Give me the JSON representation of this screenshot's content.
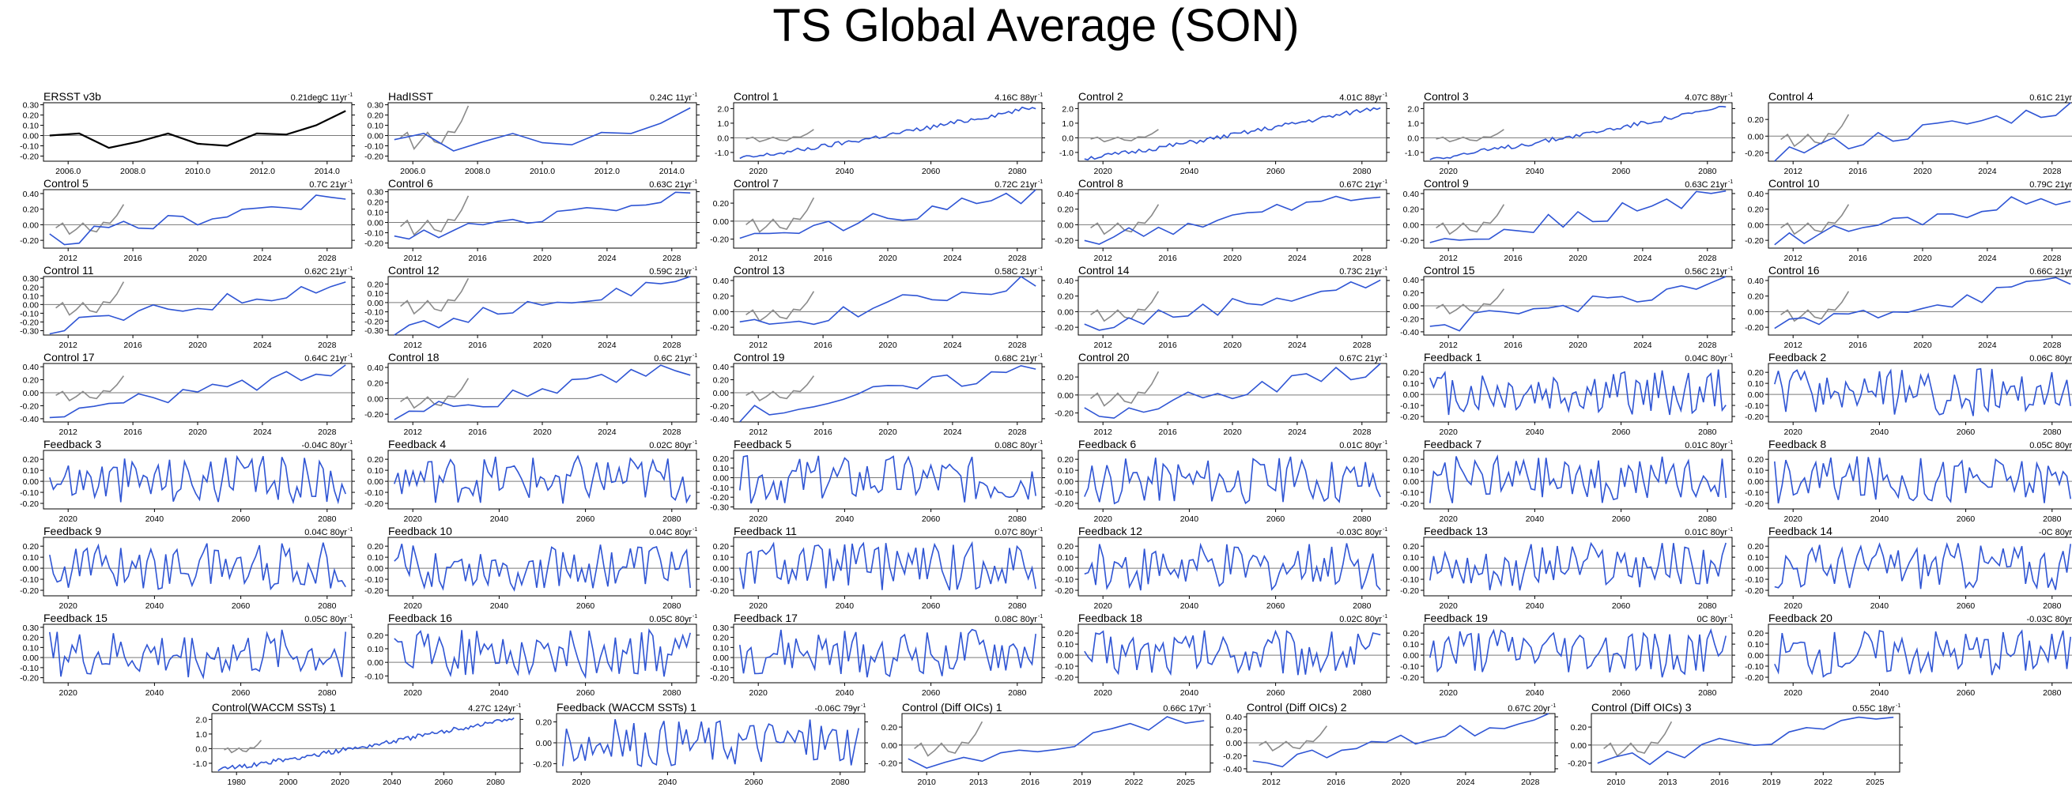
{
  "title": "TS Global Average (SON)",
  "colors": {
    "obs": "#000000",
    "model": "#2f55d4",
    "obs_overlay": "#8a8a8a",
    "zero_line": "#7a7a7a"
  },
  "chart_data": [
    {
      "type": "line",
      "label": "ERSST v3b",
      "trend": "0.21degC 11yr",
      "x": [
        2005,
        2006,
        2007,
        2008,
        2009,
        2010,
        2011,
        2012,
        2013,
        2014,
        2015
      ],
      "ticks": [
        "2006.0",
        "2008.0",
        "2010.0",
        "2012.0",
        "2014.0"
      ],
      "yticks": [
        "0.30",
        "0.20",
        "0.10",
        "0.00",
        "-0.10",
        "-0.20"
      ],
      "ylim": [
        -0.25,
        0.32
      ],
      "values": [
        0.0,
        0.02,
        -0.12,
        -0.06,
        0.02,
        -0.08,
        -0.1,
        0.02,
        0.01,
        0.1,
        0.24
      ],
      "obs": true
    },
    {
      "type": "line",
      "label": "HadISST",
      "trend": "0.24C 11yr",
      "x": [
        2005,
        2006,
        2007,
        2008,
        2009,
        2010,
        2011,
        2012,
        2013,
        2014,
        2015
      ],
      "ticks": [
        "2006.0",
        "2008.0",
        "2010.0",
        "2012.0",
        "2014.0"
      ],
      "yticks": [
        "0.30",
        "0.20",
        "0.10",
        "0.00",
        "-0.10",
        "-0.20"
      ],
      "ylim": [
        -0.25,
        0.32
      ],
      "values": [
        -0.04,
        0.02,
        -0.15,
        -0.06,
        0.02,
        -0.07,
        -0.09,
        0.03,
        0.02,
        0.12,
        0.27
      ],
      "overlay": [
        -0.02,
        0.03,
        -0.13,
        -0.05,
        0.03,
        -0.06,
        -0.08,
        0.04,
        0.03,
        0.14,
        0.29
      ]
    },
    {
      "type": "line",
      "label": "Control 1",
      "trend": "4.16C 88yr",
      "ticks": [
        "2020",
        "2040",
        "2060",
        "2080"
      ],
      "yticks": [
        "2.0",
        "1.0",
        "0.0",
        "-1.0"
      ],
      "ylim": [
        -1.6,
        2.4
      ],
      "gen": "warm88"
    },
    {
      "type": "line",
      "label": "Control 2",
      "trend": "4.01C 88yr",
      "ticks": [
        "2020",
        "2040",
        "2060",
        "2080"
      ],
      "yticks": [
        "2.0",
        "1.0",
        "0.0",
        "-1.0"
      ],
      "ylim": [
        -1.6,
        2.4
      ],
      "gen": "warm88"
    },
    {
      "type": "line",
      "label": "Control 3",
      "trend": "4.07C 88yr",
      "ticks": [
        "2020",
        "2040",
        "2060",
        "2080"
      ],
      "yticks": [
        "2.0",
        "1.0",
        "0.0",
        "-1.0"
      ],
      "ylim": [
        -1.6,
        2.4
      ],
      "gen": "warm88"
    },
    {
      "type": "line",
      "label": "Control 4",
      "trend": "0.61C 21yr",
      "ticks": [
        "2012",
        "2016",
        "2020",
        "2024",
        "2028"
      ],
      "yticks": [
        "0.20",
        "0.00",
        "-0.20"
      ],
      "ylim": [
        -0.3,
        0.4
      ],
      "gen": "c21"
    },
    {
      "type": "line",
      "label": "Control 5",
      "trend": "0.7C 21yr",
      "ticks": [
        "2012",
        "2016",
        "2020",
        "2024",
        "2028"
      ],
      "yticks": [
        "0.40",
        "0.20",
        "0.00",
        "-0.20"
      ],
      "ylim": [
        -0.3,
        0.45
      ],
      "gen": "c21"
    },
    {
      "type": "line",
      "label": "Control 6",
      "trend": "0.63C 21yr",
      "ticks": [
        "2012",
        "2016",
        "2020",
        "2024",
        "2028"
      ],
      "yticks": [
        "0.30",
        "0.20",
        "0.10",
        "0.00",
        "-0.10",
        "-0.20"
      ],
      "ylim": [
        -0.25,
        0.32
      ],
      "gen": "c21"
    },
    {
      "type": "line",
      "label": "Control 7",
      "trend": "0.72C 21yr",
      "ticks": [
        "2012",
        "2016",
        "2020",
        "2024",
        "2028"
      ],
      "yticks": [
        "0.20",
        "0.00",
        "-0.20"
      ],
      "ylim": [
        -0.3,
        0.35
      ],
      "gen": "c21"
    },
    {
      "type": "line",
      "label": "Control 8",
      "trend": "0.67C 21yr",
      "ticks": [
        "2012",
        "2016",
        "2020",
        "2024",
        "2028"
      ],
      "yticks": [
        "0.40",
        "0.20",
        "0.00",
        "-0.20"
      ],
      "ylim": [
        -0.3,
        0.45
      ],
      "gen": "c21"
    },
    {
      "type": "line",
      "label": "Control 9",
      "trend": "0.63C 21yr",
      "ticks": [
        "2012",
        "2016",
        "2020",
        "2024",
        "2028"
      ],
      "yticks": [
        "0.40",
        "0.20",
        "0.00",
        "-0.20"
      ],
      "ylim": [
        -0.3,
        0.45
      ],
      "gen": "c21"
    },
    {
      "type": "line",
      "label": "Control 10",
      "trend": "0.79C 21yr",
      "ticks": [
        "2012",
        "2016",
        "2020",
        "2024",
        "2028"
      ],
      "yticks": [
        "0.40",
        "0.20",
        "0.00",
        "-0.20"
      ],
      "ylim": [
        -0.3,
        0.45
      ],
      "gen": "c21"
    },
    {
      "type": "line",
      "label": "Control 11",
      "trend": "0.62C 21yr",
      "ticks": [
        "2012",
        "2016",
        "2020",
        "2024",
        "2028"
      ],
      "yticks": [
        "0.30",
        "0.20",
        "0.10",
        "0.00",
        "-0.10",
        "-0.20",
        "-0.30"
      ],
      "ylim": [
        -0.35,
        0.32
      ],
      "gen": "c21"
    },
    {
      "type": "line",
      "label": "Control 12",
      "trend": "0.59C 21yr",
      "ticks": [
        "2012",
        "2016",
        "2020",
        "2024",
        "2028"
      ],
      "yticks": [
        "0.20",
        "0.10",
        "0.00",
        "-0.10",
        "-0.20",
        "-0.30"
      ],
      "ylim": [
        -0.35,
        0.28
      ],
      "gen": "c21"
    },
    {
      "type": "line",
      "label": "Control 13",
      "trend": "0.58C 21yr",
      "ticks": [
        "2012",
        "2016",
        "2020",
        "2024",
        "2028"
      ],
      "yticks": [
        "0.40",
        "0.20",
        "0.00",
        "-0.20"
      ],
      "ylim": [
        -0.3,
        0.45
      ],
      "gen": "c21"
    },
    {
      "type": "line",
      "label": "Control 14",
      "trend": "0.73C 21yr",
      "ticks": [
        "2012",
        "2016",
        "2020",
        "2024",
        "2028"
      ],
      "yticks": [
        "0.40",
        "0.20",
        "0.00",
        "-0.20"
      ],
      "ylim": [
        -0.3,
        0.45
      ],
      "gen": "c21"
    },
    {
      "type": "line",
      "label": "Control 15",
      "trend": "0.56C 21yr",
      "ticks": [
        "2012",
        "2016",
        "2020",
        "2024",
        "2028"
      ],
      "yticks": [
        "0.40",
        "0.20",
        "0.00",
        "-0.20",
        "-0.40"
      ],
      "ylim": [
        -0.45,
        0.45
      ],
      "gen": "c21"
    },
    {
      "type": "line",
      "label": "Control 16",
      "trend": "0.66C 21yr",
      "ticks": [
        "2012",
        "2016",
        "2020",
        "2024",
        "2028"
      ],
      "yticks": [
        "0.40",
        "0.20",
        "0.00",
        "-0.20"
      ],
      "ylim": [
        -0.3,
        0.45
      ],
      "gen": "c21"
    },
    {
      "type": "line",
      "label": "Control 17",
      "trend": "0.64C 21yr",
      "ticks": [
        "2012",
        "2016",
        "2020",
        "2024",
        "2028"
      ],
      "yticks": [
        "0.40",
        "0.20",
        "0.00",
        "-0.20",
        "-0.40"
      ],
      "ylim": [
        -0.45,
        0.45
      ],
      "gen": "c21"
    },
    {
      "type": "line",
      "label": "Control 18",
      "trend": "0.6C 21yr",
      "ticks": [
        "2012",
        "2016",
        "2020",
        "2024",
        "2028"
      ],
      "yticks": [
        "0.40",
        "0.20",
        "0.00",
        "-0.20"
      ],
      "ylim": [
        -0.3,
        0.45
      ],
      "gen": "c21"
    },
    {
      "type": "line",
      "label": "Control 19",
      "trend": "0.68C 21yr",
      "ticks": [
        "2012",
        "2016",
        "2020",
        "2024",
        "2028"
      ],
      "yticks": [
        "0.40",
        "0.20",
        "0.00",
        "-0.20",
        "-0.40"
      ],
      "ylim": [
        -0.45,
        0.45
      ],
      "gen": "c21"
    },
    {
      "type": "line",
      "label": "Control 20",
      "trend": "0.67C 21yr",
      "ticks": [
        "2012",
        "2016",
        "2020",
        "2024",
        "2028"
      ],
      "yticks": [
        "0.20",
        "0.00",
        "-0.20"
      ],
      "ylim": [
        -0.3,
        0.35
      ],
      "gen": "c21"
    },
    {
      "type": "line",
      "label": "Feedback 1",
      "trend": "0.04C 80yr",
      "ticks": [
        "2020",
        "2040",
        "2060",
        "2080"
      ],
      "yticks": [
        "0.20",
        "0.10",
        "0.00",
        "-0.10",
        "-0.20"
      ],
      "ylim": [
        -0.25,
        0.28
      ],
      "gen": "f80"
    },
    {
      "type": "line",
      "label": "Feedback 2",
      "trend": "0.06C 80yr",
      "ticks": [
        "2020",
        "2040",
        "2060",
        "2080"
      ],
      "yticks": [
        "0.20",
        "0.10",
        "0.00",
        "-0.10",
        "-0.20"
      ],
      "ylim": [
        -0.25,
        0.28
      ],
      "gen": "f80"
    },
    {
      "type": "line",
      "label": "Feedback 3",
      "trend": "-0.04C 80yr",
      "ticks": [
        "2020",
        "2040",
        "2060",
        "2080"
      ],
      "yticks": [
        "0.20",
        "0.10",
        "0.00",
        "-0.10",
        "-0.20"
      ],
      "ylim": [
        -0.25,
        0.28
      ],
      "gen": "f80"
    },
    {
      "type": "line",
      "label": "Feedback 4",
      "trend": "0.02C 80yr",
      "ticks": [
        "2020",
        "2040",
        "2060",
        "2080"
      ],
      "yticks": [
        "0.20",
        "0.10",
        "0.00",
        "-0.10",
        "-0.20"
      ],
      "ylim": [
        -0.25,
        0.28
      ],
      "gen": "f80"
    },
    {
      "type": "line",
      "label": "Feedback 5",
      "trend": "0.08C 80yr",
      "ticks": [
        "2020",
        "2040",
        "2060",
        "2080"
      ],
      "yticks": [
        "0.20",
        "0.10",
        "0.00",
        "-0.10",
        "-0.20",
        "-0.30"
      ],
      "ylim": [
        -0.32,
        0.28
      ],
      "gen": "f80"
    },
    {
      "type": "line",
      "label": "Feedback 6",
      "trend": "0.01C 80yr",
      "ticks": [
        "2020",
        "2040",
        "2060",
        "2080"
      ],
      "yticks": [
        "0.20",
        "0.10",
        "0.00",
        "-0.10",
        "-0.20"
      ],
      "ylim": [
        -0.25,
        0.28
      ],
      "gen": "f80"
    },
    {
      "type": "line",
      "label": "Feedback 7",
      "trend": "0.01C 80yr",
      "ticks": [
        "2020",
        "2040",
        "2060",
        "2080"
      ],
      "yticks": [
        "0.20",
        "0.10",
        "0.00",
        "-0.10",
        "-0.20"
      ],
      "ylim": [
        -0.25,
        0.28
      ],
      "gen": "f80"
    },
    {
      "type": "line",
      "label": "Feedback 8",
      "trend": "0.05C 80yr",
      "ticks": [
        "2020",
        "2040",
        "2060",
        "2080"
      ],
      "yticks": [
        "0.20",
        "0.10",
        "0.00",
        "-0.10",
        "-0.20"
      ],
      "ylim": [
        -0.25,
        0.28
      ],
      "gen": "f80"
    },
    {
      "type": "line",
      "label": "Feedback 9",
      "trend": "0.04C 80yr",
      "ticks": [
        "2020",
        "2040",
        "2060",
        "2080"
      ],
      "yticks": [
        "0.20",
        "0.10",
        "0.00",
        "-0.10",
        "-0.20"
      ],
      "ylim": [
        -0.25,
        0.28
      ],
      "gen": "f80"
    },
    {
      "type": "line",
      "label": "Feedback 10",
      "trend": "0.04C 80yr",
      "ticks": [
        "2020",
        "2040",
        "2060",
        "2080"
      ],
      "yticks": [
        "0.20",
        "0.10",
        "0.00",
        "-0.10",
        "-0.20"
      ],
      "ylim": [
        -0.25,
        0.28
      ],
      "gen": "f80"
    },
    {
      "type": "line",
      "label": "Feedback 11",
      "trend": "0.07C 80yr",
      "ticks": [
        "2020",
        "2040",
        "2060",
        "2080"
      ],
      "yticks": [
        "0.20",
        "0.10",
        "0.00",
        "-0.10",
        "-0.20"
      ],
      "ylim": [
        -0.25,
        0.28
      ],
      "gen": "f80"
    },
    {
      "type": "line",
      "label": "Feedback 12",
      "trend": "-0.03C 80yr",
      "ticks": [
        "2020",
        "2040",
        "2060",
        "2080"
      ],
      "yticks": [
        "0.20",
        "0.10",
        "0.00",
        "-0.10",
        "-0.20"
      ],
      "ylim": [
        -0.25,
        0.28
      ],
      "gen": "f80"
    },
    {
      "type": "line",
      "label": "Feedback 13",
      "trend": "0.01C 80yr",
      "ticks": [
        "2020",
        "2040",
        "2060",
        "2080"
      ],
      "yticks": [
        "0.20",
        "0.10",
        "0.00",
        "-0.10",
        "-0.20"
      ],
      "ylim": [
        -0.25,
        0.28
      ],
      "gen": "f80"
    },
    {
      "type": "line",
      "label": "Feedback 14",
      "trend": "-0C 80yr",
      "ticks": [
        "2020",
        "2040",
        "2060",
        "2080"
      ],
      "yticks": [
        "0.20",
        "0.10",
        "0.00",
        "-0.10",
        "-0.20"
      ],
      "ylim": [
        -0.25,
        0.28
      ],
      "gen": "f80"
    },
    {
      "type": "line",
      "label": "Feedback 15",
      "trend": "0.05C 80yr",
      "ticks": [
        "2020",
        "2040",
        "2060",
        "2080"
      ],
      "yticks": [
        "0.30",
        "0.20",
        "0.10",
        "0.00",
        "-0.10",
        "-0.20"
      ],
      "ylim": [
        -0.25,
        0.33
      ],
      "gen": "f80"
    },
    {
      "type": "line",
      "label": "Feedback 16",
      "trend": "0.05C 80yr",
      "ticks": [
        "2020",
        "2040",
        "2060",
        "2080"
      ],
      "yticks": [
        "0.20",
        "0.10",
        "0.00",
        "-0.10"
      ],
      "ylim": [
        -0.15,
        0.28
      ],
      "gen": "f80"
    },
    {
      "type": "line",
      "label": "Feedback 17",
      "trend": "0.08C 80yr",
      "ticks": [
        "2020",
        "2040",
        "2060",
        "2080"
      ],
      "yticks": [
        "0.30",
        "0.20",
        "0.10",
        "0.00",
        "-0.10",
        "-0.20"
      ],
      "ylim": [
        -0.25,
        0.33
      ],
      "gen": "f80"
    },
    {
      "type": "line",
      "label": "Feedback 18",
      "trend": "0.02C 80yr",
      "ticks": [
        "2020",
        "2040",
        "2060",
        "2080"
      ],
      "yticks": [
        "0.20",
        "0.10",
        "0.00",
        "-0.10",
        "-0.20"
      ],
      "ylim": [
        -0.25,
        0.28
      ],
      "gen": "f80"
    },
    {
      "type": "line",
      "label": "Feedback 19",
      "trend": "0C 80yr",
      "ticks": [
        "2020",
        "2040",
        "2060",
        "2080"
      ],
      "yticks": [
        "0.20",
        "0.10",
        "0.00",
        "-0.10",
        "-0.20"
      ],
      "ylim": [
        -0.25,
        0.28
      ],
      "gen": "f80"
    },
    {
      "type": "line",
      "label": "Feedback 20",
      "trend": "-0.03C 80yr",
      "ticks": [
        "2020",
        "2040",
        "2060",
        "2080"
      ],
      "yticks": [
        "0.20",
        "0.10",
        "0.00",
        "-0.10",
        "-0.20"
      ],
      "ylim": [
        -0.25,
        0.28
      ],
      "gen": "f80"
    },
    {
      "type": "line",
      "label": "Control(WACCM SSTs) 1",
      "trend": "4.27C 124yr",
      "ticks": [
        "1980",
        "2000",
        "2020",
        "2040",
        "2060",
        "2080"
      ],
      "yticks": [
        "2.0",
        "1.0",
        "0.0",
        "-1.0"
      ],
      "ylim": [
        -1.6,
        2.4
      ],
      "gen": "warm124"
    },
    {
      "type": "line",
      "label": "Feedback (WACCM SSTs) 1",
      "trend": "-0.06C 79yr",
      "ticks": [
        "2020",
        "2040",
        "2060",
        "2080"
      ],
      "yticks": [
        "0.20",
        "0.00",
        "-0.20"
      ],
      "ylim": [
        -0.28,
        0.28
      ],
      "gen": "f80"
    },
    {
      "type": "line",
      "label": "Control (Diff OICs) 1",
      "trend": "0.66C 17yr",
      "ticks": [
        "2010",
        "2013",
        "2016",
        "2019",
        "2022",
        "2025"
      ],
      "yticks": [
        "0.20",
        "0.00",
        "-0.20"
      ],
      "ylim": [
        -0.3,
        0.35
      ],
      "gen": "c17"
    },
    {
      "type": "line",
      "label": "Control (Diff OICs) 2",
      "trend": "0.67C 20yr",
      "ticks": [
        "2012",
        "2016",
        "2020",
        "2024",
        "2028"
      ],
      "yticks": [
        "0.40",
        "0.20",
        "0.00",
        "-0.20",
        "-0.40"
      ],
      "ylim": [
        -0.45,
        0.45
      ],
      "gen": "c21"
    },
    {
      "type": "line",
      "label": "Control (Diff OICs) 3",
      "trend": "0.55C 18yr",
      "ticks": [
        "2010",
        "2013",
        "2016",
        "2019",
        "2022",
        "2025"
      ],
      "yticks": [
        "0.20",
        "0.00",
        "-0.20"
      ],
      "ylim": [
        -0.3,
        0.35
      ],
      "gen": "c18"
    }
  ]
}
